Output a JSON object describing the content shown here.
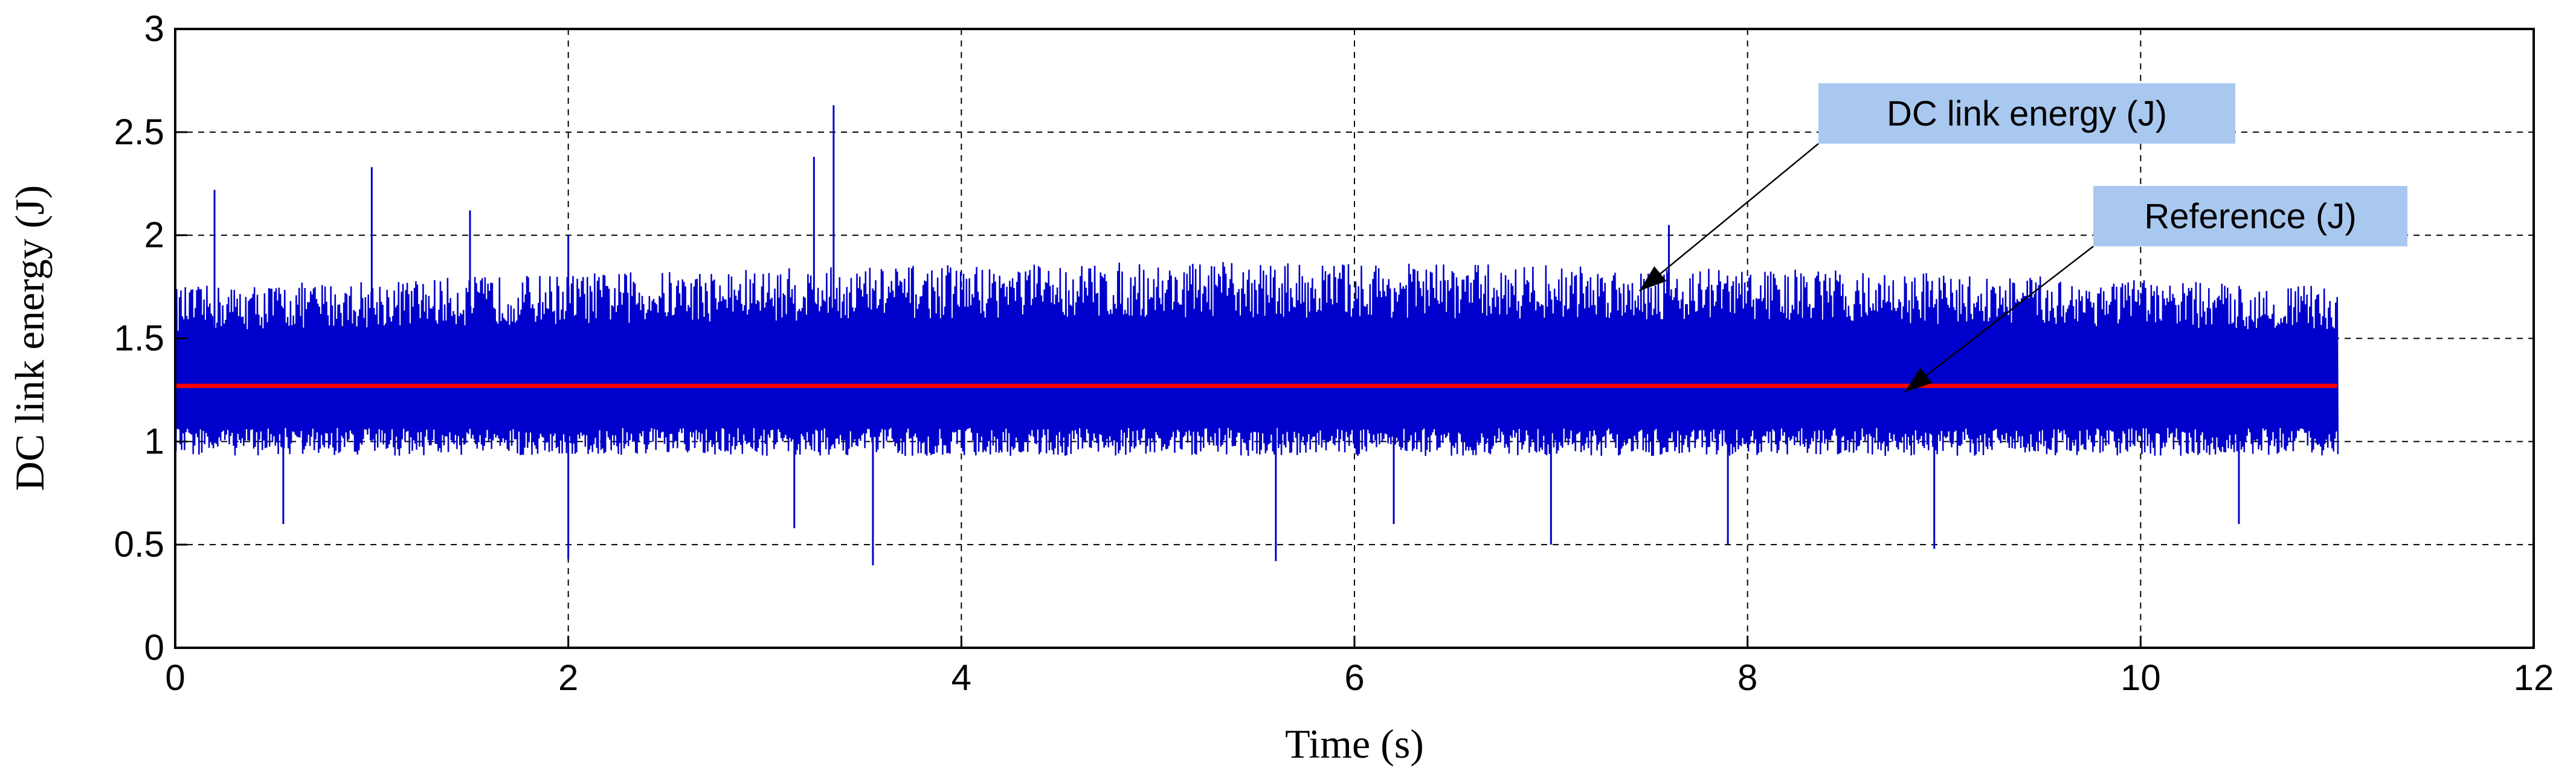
{
  "chart_data": {
    "type": "line",
    "xlabel": "Time (s)",
    "ylabel": "DC link energy (J)",
    "xlim": [
      0,
      12
    ],
    "ylim": [
      0,
      3
    ],
    "xticks": [
      "0",
      "2",
      "4",
      "6",
      "8",
      "10",
      "12"
    ],
    "yticks": [
      "0",
      "0.5",
      "1",
      "1.5",
      "2",
      "2.5",
      "3"
    ],
    "grid": true,
    "colors": {
      "energy": "#0000cc",
      "reference": "#ff0000",
      "annotation_bg": "#a9c8f0"
    },
    "series": [
      {
        "name": "DC link energy (J)",
        "x_range": [
          0,
          11
        ],
        "mean": 1.27,
        "typical_min": 0.93,
        "typical_max": 1.75,
        "spikes": [
          {
            "x": 0.2,
            "y": 2.22
          },
          {
            "x": 1.0,
            "y": 2.33
          },
          {
            "x": 1.5,
            "y": 2.12
          },
          {
            "x": 2.0,
            "y": 2.0
          },
          {
            "x": 3.25,
            "y": 2.38
          },
          {
            "x": 3.35,
            "y": 2.63
          },
          {
            "x": 7.6,
            "y": 2.05
          },
          {
            "x": 2.0,
            "y": 0.43
          },
          {
            "x": 3.55,
            "y": 0.4
          },
          {
            "x": 5.6,
            "y": 0.42
          },
          {
            "x": 7.0,
            "y": 0.5
          },
          {
            "x": 7.9,
            "y": 0.5
          },
          {
            "x": 8.95,
            "y": 0.48
          },
          {
            "x": 0.55,
            "y": 0.6
          },
          {
            "x": 3.15,
            "y": 0.58
          },
          {
            "x": 6.2,
            "y": 0.6
          },
          {
            "x": 10.5,
            "y": 0.6
          }
        ]
      },
      {
        "name": "Reference (J)",
        "x": [
          0,
          11
        ],
        "values": [
          1.27,
          1.27
        ]
      }
    ],
    "annotations": [
      {
        "text": "DC link energy (J)",
        "target": {
          "x": 7.45,
          "y": 1.73
        }
      },
      {
        "text": "Reference (J)",
        "target": {
          "x": 8.8,
          "y": 1.24
        }
      }
    ]
  }
}
